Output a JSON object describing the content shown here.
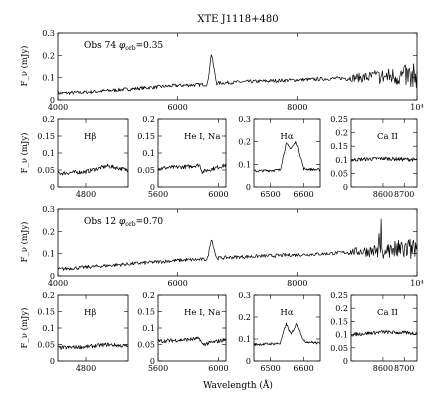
{
  "figure_title": "XTE J1118+480",
  "xlabel": "Wavelength (Å)",
  "ylabel": "F_ν (mJy)",
  "line_color": "#000000",
  "chart_data": [
    {
      "id": "full1",
      "type": "line",
      "title": "",
      "annotation": {
        "prefix": "Obs 74",
        "phi": "φorb",
        "value": "=0.35"
      },
      "xlim": [
        4000,
        10000
      ],
      "ylim": [
        0,
        0.3
      ],
      "xticks": [
        "4000",
        "6000",
        "8000",
        "10⁴"
      ],
      "yticks": [
        "0",
        "0.1",
        "0.2",
        "0.3"
      ],
      "series": [
        {
          "values": [
            [
              4000,
              0.03
            ],
            [
              4500,
              0.035
            ],
            [
              5000,
              0.045
            ],
            [
              5500,
              0.055
            ],
            [
              6000,
              0.065
            ],
            [
              6500,
              0.07
            ],
            [
              6563,
              0.21
            ],
            [
              6650,
              0.075
            ],
            [
              7000,
              0.08
            ],
            [
              7500,
              0.085
            ],
            [
              8000,
              0.09
            ],
            [
              8500,
              0.095
            ],
            [
              9000,
              0.1
            ],
            [
              9500,
              0.105
            ],
            [
              10000,
              0.11
            ]
          ]
        }
      ]
    },
    {
      "id": "hb1",
      "type": "line",
      "label": "Hβ",
      "xlim": [
        4720,
        4920
      ],
      "ylim": [
        0,
        0.2
      ],
      "xticks": [
        "4800"
      ],
      "yticks": [
        "0",
        "0.05",
        "0.1",
        "0.15",
        "0.2"
      ],
      "series": [
        {
          "values": [
            [
              4720,
              0.04
            ],
            [
              4800,
              0.045
            ],
            [
              4861,
              0.062
            ],
            [
              4920,
              0.05
            ]
          ]
        }
      ]
    },
    {
      "id": "he1",
      "type": "line",
      "label": "He I, Na",
      "xlim": [
        5600,
        6050
      ],
      "ylim": [
        0,
        0.2
      ],
      "xticks": [
        "5600",
        "6000"
      ],
      "yticks": [
        "0",
        "0.05",
        "0.1",
        "0.15",
        "0.2"
      ],
      "series": [
        {
          "values": [
            [
              5600,
              0.055
            ],
            [
              5800,
              0.06
            ],
            [
              5876,
              0.065
            ],
            [
              5893,
              0.045
            ],
            [
              6050,
              0.065
            ]
          ]
        }
      ]
    },
    {
      "id": "ha1",
      "type": "line",
      "label": "Hα",
      "xlim": [
        6450,
        6650
      ],
      "ylim": [
        0,
        0.3
      ],
      "xticks": [
        "6500",
        "6600"
      ],
      "yticks": [
        "0",
        "0.1",
        "0.2",
        "0.3"
      ],
      "series": [
        {
          "values": [
            [
              6450,
              0.07
            ],
            [
              6530,
              0.075
            ],
            [
              6548,
              0.19
            ],
            [
              6563,
              0.17
            ],
            [
              6578,
              0.2
            ],
            [
              6600,
              0.08
            ],
            [
              6650,
              0.075
            ]
          ]
        }
      ]
    },
    {
      "id": "ca1",
      "type": "line",
      "label": "Ca II",
      "xlim": [
        8450,
        8760
      ],
      "ylim": [
        0,
        0.25
      ],
      "xticks": [
        "8600",
        "8700"
      ],
      "yticks": [
        "0",
        "0.05",
        "0.1",
        "0.15",
        "0.2",
        "0.25"
      ],
      "series": [
        {
          "values": [
            [
              8450,
              0.1
            ],
            [
              8600,
              0.105
            ],
            [
              8760,
              0.1
            ]
          ]
        }
      ]
    },
    {
      "id": "full2",
      "type": "line",
      "title": "",
      "annotation": {
        "prefix": "Obs 12",
        "phi": "φorb",
        "value": "=0.70"
      },
      "xlim": [
        4000,
        10000
      ],
      "ylim": [
        0,
        0.3
      ],
      "xticks": [
        "4000",
        "6000",
        "8000",
        "10⁴"
      ],
      "yticks": [
        "0",
        "0.1",
        "0.2",
        "0.3"
      ],
      "series": [
        {
          "values": [
            [
              4000,
              0.03
            ],
            [
              4500,
              0.04
            ],
            [
              5000,
              0.05
            ],
            [
              5500,
              0.06
            ],
            [
              6000,
              0.07
            ],
            [
              6500,
              0.075
            ],
            [
              6563,
              0.17
            ],
            [
              6650,
              0.08
            ],
            [
              7000,
              0.085
            ],
            [
              7500,
              0.09
            ],
            [
              8000,
              0.095
            ],
            [
              8500,
              0.1
            ],
            [
              9000,
              0.11
            ],
            [
              9500,
              0.115
            ],
            [
              10000,
              0.12
            ]
          ]
        }
      ]
    },
    {
      "id": "hb2",
      "type": "line",
      "label": "Hβ",
      "xlim": [
        4720,
        4920
      ],
      "ylim": [
        0,
        0.2
      ],
      "xticks": [
        "4800"
      ],
      "yticks": [
        "0",
        "0.05",
        "0.1",
        "0.15",
        "0.2"
      ],
      "series": [
        {
          "values": [
            [
              4720,
              0.04
            ],
            [
              4800,
              0.043
            ],
            [
              4861,
              0.05
            ],
            [
              4920,
              0.045
            ]
          ]
        }
      ]
    },
    {
      "id": "he2",
      "type": "line",
      "label": "He I, Na",
      "xlim": [
        5600,
        6050
      ],
      "ylim": [
        0,
        0.2
      ],
      "xticks": [
        "5600",
        "6000"
      ],
      "yticks": [
        "0",
        "0.05",
        "0.1",
        "0.15",
        "0.2"
      ],
      "series": [
        {
          "values": [
            [
              5600,
              0.06
            ],
            [
              5800,
              0.065
            ],
            [
              5876,
              0.068
            ],
            [
              5893,
              0.05
            ],
            [
              6050,
              0.065
            ]
          ]
        }
      ]
    },
    {
      "id": "ha2",
      "type": "line",
      "label": "Hα",
      "xlim": [
        6450,
        6650
      ],
      "ylim": [
        0,
        0.3
      ],
      "xticks": [
        "6500",
        "6600"
      ],
      "yticks": [
        "0",
        "0.1",
        "0.2",
        "0.3"
      ],
      "series": [
        {
          "values": [
            [
              6450,
              0.075
            ],
            [
              6530,
              0.08
            ],
            [
              6548,
              0.17
            ],
            [
              6563,
              0.12
            ],
            [
              6580,
              0.17
            ],
            [
              6600,
              0.09
            ],
            [
              6650,
              0.08
            ]
          ]
        }
      ]
    },
    {
      "id": "ca2",
      "type": "line",
      "label": "Ca II",
      "xlim": [
        8450,
        8760
      ],
      "ylim": [
        0,
        0.25
      ],
      "xticks": [
        "8600",
        "8700"
      ],
      "yticks": [
        "0",
        "0.05",
        "0.1",
        "0.15",
        "0.2",
        "0.25"
      ],
      "series": [
        {
          "values": [
            [
              8450,
              0.1
            ],
            [
              8600,
              0.11
            ],
            [
              8760,
              0.105
            ]
          ]
        }
      ]
    }
  ]
}
